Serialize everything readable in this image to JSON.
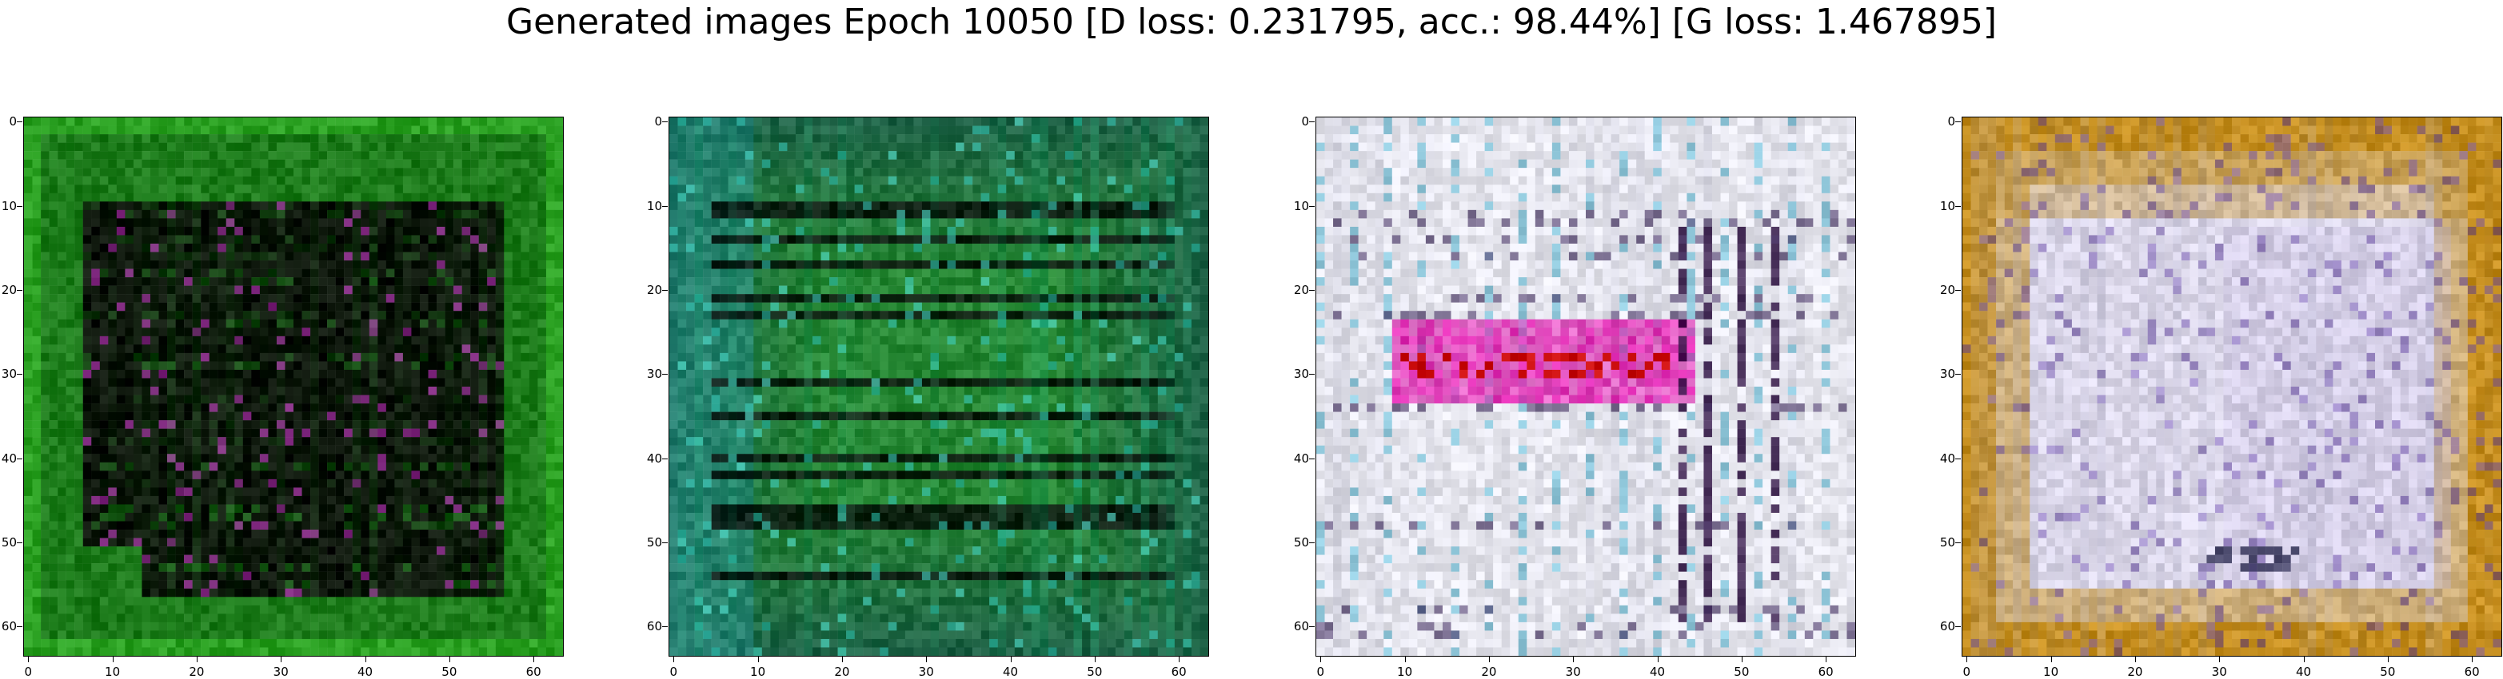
{
  "figure": {
    "title": "Generated images Epoch 10050 [D loss: 0.231795, acc.: 98.44%] [G loss: 1.467895]"
  },
  "axes": {
    "tick_values": [
      0,
      10,
      20,
      30,
      40,
      50,
      60
    ],
    "tick_labels": [
      "0",
      "10",
      "20",
      "30",
      "40",
      "50",
      "60"
    ],
    "extent": [
      -0.5,
      63.5
    ]
  },
  "panels": [
    {
      "id": "panel-1",
      "palette": "green-dark",
      "base": "#1c7a1a",
      "border_tone": "#2aa021",
      "center_tone": "#0a0f08",
      "accent": "#b030b0"
    },
    {
      "id": "panel-2",
      "palette": "green-teal",
      "base": "#2a9a2a",
      "border_tone": "#1f8e3a",
      "center_tone": "#1c5a48",
      "accent": "#40d0c0"
    },
    {
      "id": "panel-3",
      "palette": "white-magenta",
      "base": "#e6e6ee",
      "border_tone": "#c8c8d8",
      "center_tone": "#d8d4e6",
      "accent": "#e020b0"
    },
    {
      "id": "panel-4",
      "palette": "gold-lavender",
      "base": "#d8d4e8",
      "border_tone": "#c08a1a",
      "center_tone": "#e0dcec",
      "accent": "#6040a0"
    }
  ]
}
